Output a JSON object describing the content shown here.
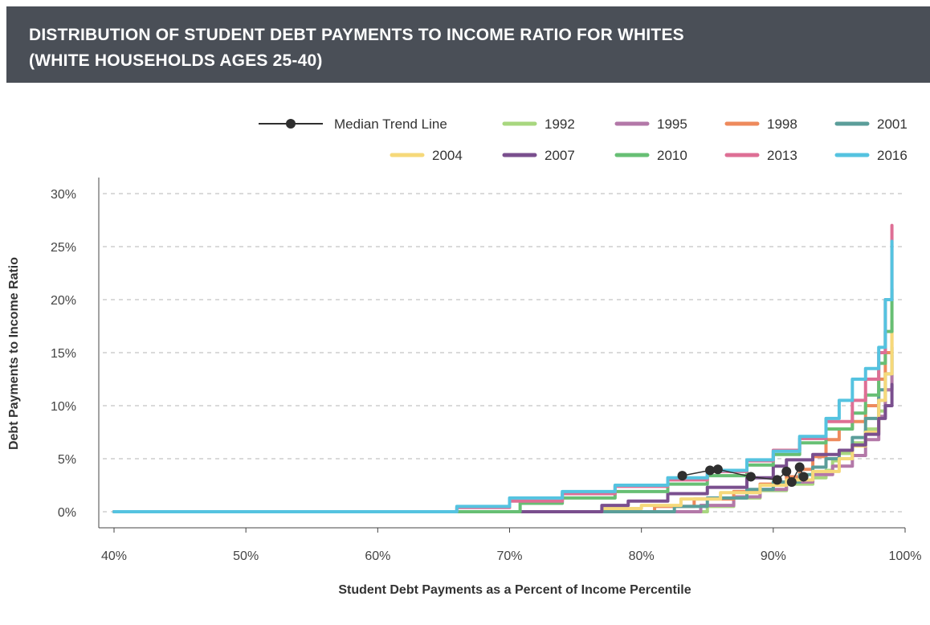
{
  "header": {
    "title_line1": "DISTRIBUTION OF STUDENT DEBT PAYMENTS TO INCOME RATIO FOR WHITES",
    "title_line2": "(WHITE HOUSEHOLDS AGES 25-40)"
  },
  "chart_data": {
    "type": "line",
    "xlabel": "Student Debt Payments as a Percent of Income Percentile",
    "ylabel": "Debt Payments to Income Ratio",
    "xlim": [
      40,
      100
    ],
    "ylim": [
      0,
      30
    ],
    "x_ticks": [
      "40%",
      "50%",
      "60%",
      "70%",
      "80%",
      "90%",
      "100%"
    ],
    "y_ticks": [
      "0%",
      "5%",
      "10%",
      "15%",
      "20%",
      "25%",
      "30%"
    ],
    "grid": "horizontal dashed",
    "legend_position": "top-right",
    "median_trend_line": {
      "name": "Median Trend Line",
      "color": "#2f2f2f",
      "points": [
        [
          83.1,
          3.4
        ],
        [
          85.2,
          3.9
        ],
        [
          85.8,
          4.0
        ],
        [
          88.3,
          3.3
        ],
        [
          90.3,
          3.0
        ],
        [
          91.0,
          3.8
        ],
        [
          91.4,
          2.8
        ],
        [
          92.0,
          4.2
        ],
        [
          92.3,
          3.3
        ]
      ]
    },
    "series": [
      {
        "name": "1992",
        "color": "#a8d77f",
        "points": [
          [
            40,
            0
          ],
          [
            84.5,
            0
          ],
          [
            85,
            0.5
          ],
          [
            87,
            1.3
          ],
          [
            89,
            2.0
          ],
          [
            91,
            2.6
          ],
          [
            93,
            3.2
          ],
          [
            94,
            3.9
          ],
          [
            94.5,
            4.8
          ],
          [
            95,
            5.5
          ],
          [
            96,
            6.5
          ],
          [
            97,
            7.8
          ],
          [
            98,
            9.5
          ],
          [
            98.5,
            11.5
          ],
          [
            99,
            15
          ]
        ]
      },
      {
        "name": "1995",
        "color": "#b378a8",
        "points": [
          [
            40,
            0
          ],
          [
            84,
            0
          ],
          [
            84.5,
            0.6
          ],
          [
            87,
            1.4
          ],
          [
            89,
            2.1
          ],
          [
            91,
            2.8
          ],
          [
            93,
            3.5
          ],
          [
            94.5,
            4.3
          ],
          [
            96,
            5.3
          ],
          [
            97,
            6.8
          ],
          [
            98,
            9.0
          ],
          [
            98.5,
            11.5
          ],
          [
            99,
            14.8
          ]
        ]
      },
      {
        "name": "1998",
        "color": "#ee8a5c",
        "points": [
          [
            40,
            0
          ],
          [
            80.5,
            0
          ],
          [
            81,
            0.5
          ],
          [
            84,
            1.2
          ],
          [
            87,
            1.9
          ],
          [
            89,
            2.6
          ],
          [
            91,
            3.3
          ],
          [
            92,
            4.0
          ],
          [
            93,
            5.2
          ],
          [
            94,
            6.8
          ],
          [
            95,
            7.8
          ],
          [
            96,
            8.5
          ],
          [
            97,
            10
          ],
          [
            98,
            12.5
          ],
          [
            98.5,
            15
          ],
          [
            99,
            18
          ]
        ]
      },
      {
        "name": "2001",
        "color": "#5b9e9a",
        "points": [
          [
            40,
            0
          ],
          [
            82,
            0
          ],
          [
            82.5,
            0.5
          ],
          [
            85,
            1.3
          ],
          [
            88,
            2.1
          ],
          [
            90,
            2.8
          ],
          [
            92,
            3.5
          ],
          [
            93,
            4.2
          ],
          [
            94,
            5.0
          ],
          [
            95,
            5.8
          ],
          [
            96,
            7.0
          ],
          [
            97,
            8.8
          ],
          [
            98,
            11.5
          ],
          [
            98.5,
            13
          ],
          [
            99,
            15.5
          ]
        ]
      },
      {
        "name": "2004",
        "color": "#f6d97a",
        "points": [
          [
            40,
            0
          ],
          [
            76.8,
            0
          ],
          [
            77,
            0.3
          ],
          [
            80,
            0.6
          ],
          [
            83,
            1.2
          ],
          [
            86,
            1.8
          ],
          [
            89,
            2.5
          ],
          [
            91,
            3.0
          ],
          [
            93,
            3.8
          ],
          [
            95,
            5.0
          ],
          [
            96,
            6.2
          ],
          [
            97,
            7.5
          ],
          [
            98,
            10.5
          ],
          [
            98.5,
            13
          ],
          [
            99,
            17
          ]
        ]
      },
      {
        "name": "2007",
        "color": "#7a4f8e",
        "points": [
          [
            40,
            0
          ],
          [
            76.5,
            0
          ],
          [
            77,
            0.6
          ],
          [
            79,
            1.0
          ],
          [
            82,
            1.7
          ],
          [
            85,
            2.3
          ],
          [
            88,
            3.2
          ],
          [
            90,
            4.3
          ],
          [
            91,
            4.9
          ],
          [
            93,
            5.4
          ],
          [
            95,
            5.8
          ],
          [
            96,
            6.3
          ],
          [
            97,
            7.3
          ],
          [
            98,
            8.8
          ],
          [
            98.5,
            10.0
          ],
          [
            99,
            12
          ]
        ]
      },
      {
        "name": "2010",
        "color": "#67bf74",
        "points": [
          [
            40,
            0
          ],
          [
            70.3,
            0
          ],
          [
            70.8,
            0.8
          ],
          [
            74,
            1.3
          ],
          [
            78,
            1.9
          ],
          [
            82,
            2.6
          ],
          [
            85,
            3.4
          ],
          [
            88,
            4.4
          ],
          [
            90,
            5.4
          ],
          [
            92,
            6.5
          ],
          [
            94,
            7.8
          ],
          [
            96,
            9.3
          ],
          [
            97,
            11
          ],
          [
            98,
            14
          ],
          [
            98.5,
            17
          ],
          [
            99,
            21
          ]
        ]
      },
      {
        "name": "2013",
        "color": "#de6f95",
        "points": [
          [
            40,
            0
          ],
          [
            65.5,
            0
          ],
          [
            66,
            0.4
          ],
          [
            70,
            1.0
          ],
          [
            74,
            1.7
          ],
          [
            78,
            2.4
          ],
          [
            82,
            3.0
          ],
          [
            85,
            3.8
          ],
          [
            88,
            4.8
          ],
          [
            90,
            5.8
          ],
          [
            92,
            6.9
          ],
          [
            94,
            8.5
          ],
          [
            96,
            10.5
          ],
          [
            97,
            12.5
          ],
          [
            98,
            15
          ],
          [
            98.5,
            20
          ],
          [
            99,
            27
          ]
        ]
      },
      {
        "name": "2016",
        "color": "#55c3e0",
        "points": [
          [
            40,
            0
          ],
          [
            65.3,
            0
          ],
          [
            66,
            0.5
          ],
          [
            70,
            1.3
          ],
          [
            74,
            1.9
          ],
          [
            78,
            2.5
          ],
          [
            82,
            3.2
          ],
          [
            85,
            3.9
          ],
          [
            88,
            4.9
          ],
          [
            90,
            5.7
          ],
          [
            92,
            7.1
          ],
          [
            94,
            8.8
          ],
          [
            95,
            10.5
          ],
          [
            96,
            12.5
          ],
          [
            97,
            13.5
          ],
          [
            98,
            15.5
          ],
          [
            98.5,
            20
          ],
          [
            99,
            25.5
          ]
        ]
      }
    ]
  }
}
